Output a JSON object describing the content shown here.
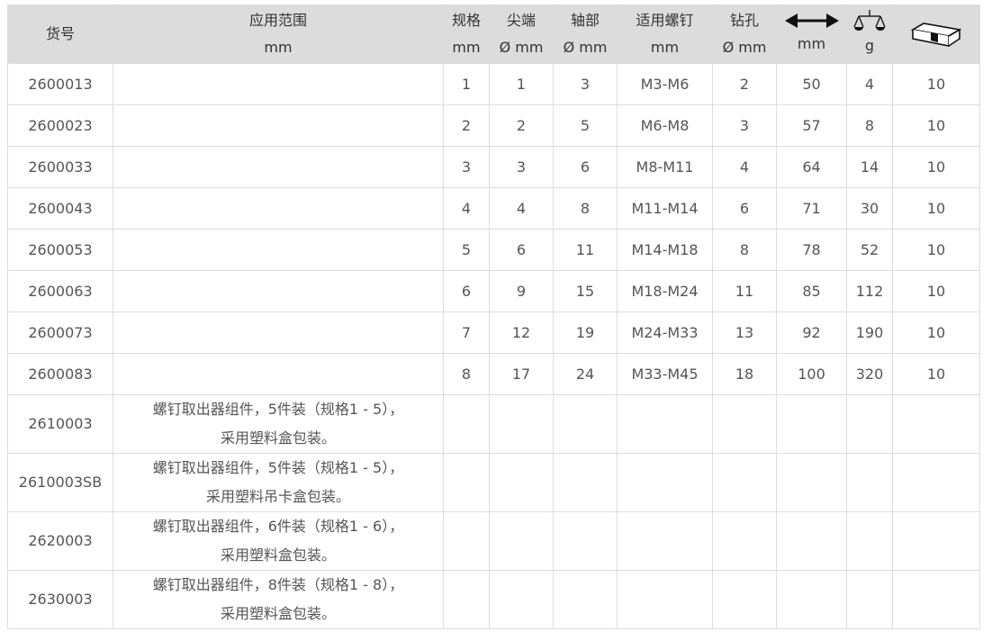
{
  "headers": [
    {
      "l1": "货号",
      "l2": ""
    },
    {
      "l1": "应用范围",
      "l2": "mm"
    },
    {
      "l1": "规格",
      "l2": "mm"
    },
    {
      "l1": "尖端",
      "l2": "Ø mm"
    },
    {
      "l1": "轴部",
      "l2": "Ø mm"
    },
    {
      "l1": "适用螺钉",
      "l2": "mm"
    },
    {
      "l1": "钻孔",
      "l2": "Ø mm"
    },
    {
      "icon": "length-arrow-icon",
      "l2": "mm"
    },
    {
      "icon": "scale-weight-icon",
      "l2": "g"
    },
    {
      "icon": "package-box-icon",
      "l2": ""
    }
  ],
  "rows": [
    [
      "2600013",
      "",
      "1",
      "1",
      "3",
      "M3-M6",
      "2",
      "50",
      "4",
      "10"
    ],
    [
      "2600023",
      "",
      "2",
      "2",
      "5",
      "M6-M8",
      "3",
      "57",
      "8",
      "10"
    ],
    [
      "2600033",
      "",
      "3",
      "3",
      "6",
      "M8-M11",
      "4",
      "64",
      "14",
      "10"
    ],
    [
      "2600043",
      "",
      "4",
      "4",
      "8",
      "M11-M14",
      "6",
      "71",
      "30",
      "10"
    ],
    [
      "2600053",
      "",
      "5",
      "6",
      "11",
      "M14-M18",
      "8",
      "78",
      "52",
      "10"
    ],
    [
      "2600063",
      "",
      "6",
      "9",
      "15",
      "M18-M24",
      "11",
      "85",
      "112",
      "10"
    ],
    [
      "2600073",
      "",
      "7",
      "12",
      "19",
      "M24-M33",
      "13",
      "92",
      "190",
      "10"
    ],
    [
      "2600083",
      "",
      "8",
      "17",
      "24",
      "M33-M45",
      "18",
      "100",
      "320",
      "10"
    ]
  ],
  "kits": [
    {
      "id": "2610003",
      "l1": "螺钉取出器组件，5件装（规格1 - 5），",
      "l2": "采用塑料盒包装。"
    },
    {
      "id": "2610003SB",
      "l1": "螺钉取出器组件，5件装（规格1 - 5），",
      "l2": "采用塑料吊卡盒包装。"
    },
    {
      "id": "2620003",
      "l1": "螺钉取出器组件，6件装（规格1 - 6），",
      "l2": "采用塑料盒包装。"
    },
    {
      "id": "2630003",
      "l1": "螺钉取出器组件，8件装（规格1 - 8），",
      "l2": "采用塑料盒包装。"
    }
  ]
}
